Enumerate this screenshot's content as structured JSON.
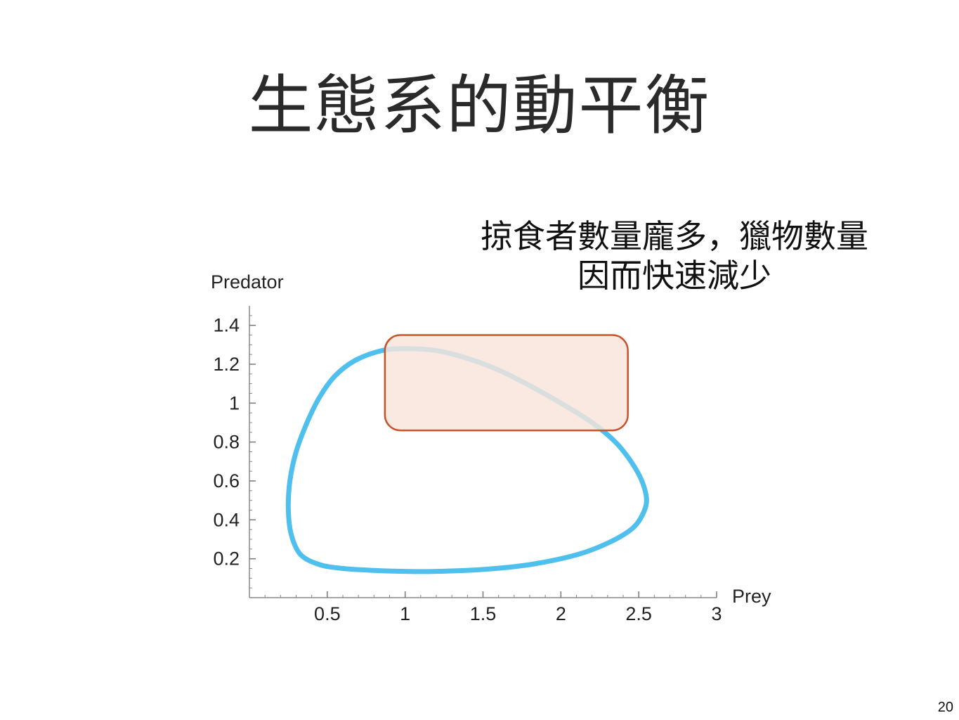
{
  "slide": {
    "title": "生態系的動平衡",
    "caption_line1": "掠食者數量龐多，獵物數量",
    "caption_line2": "因而快速減少",
    "page_number": "20"
  },
  "chart_data": {
    "type": "line",
    "xlabel": "Prey",
    "ylabel": "Predator",
    "xlim": [
      0,
      3
    ],
    "ylim": [
      0,
      1.5
    ],
    "x_ticks": [
      0.5,
      1,
      1.5,
      2,
      2.5,
      3
    ],
    "x_tick_labels": [
      "0.5",
      "1",
      "1.5",
      "2",
      "2.5",
      "3"
    ],
    "y_ticks": [
      0.2,
      0.4,
      0.6,
      0.8,
      1,
      1.2,
      1.4
    ],
    "y_tick_labels": [
      "0.2",
      "0.4",
      "0.6",
      "0.8",
      "1",
      "1.2",
      "1.4"
    ],
    "grid": false,
    "series": [
      {
        "color": "#4fc0ee",
        "closed": true,
        "points": [
          [
            1.0,
            1.28
          ],
          [
            1.2,
            1.27
          ],
          [
            1.4,
            1.23
          ],
          [
            1.6,
            1.17
          ],
          [
            1.8,
            1.09
          ],
          [
            2.0,
            1.0
          ],
          [
            2.2,
            0.9
          ],
          [
            2.35,
            0.8
          ],
          [
            2.45,
            0.7
          ],
          [
            2.52,
            0.6
          ],
          [
            2.55,
            0.5
          ],
          [
            2.52,
            0.42
          ],
          [
            2.45,
            0.35
          ],
          [
            2.3,
            0.28
          ],
          [
            2.1,
            0.22
          ],
          [
            1.8,
            0.17
          ],
          [
            1.5,
            0.145
          ],
          [
            1.2,
            0.135
          ],
          [
            1.0,
            0.135
          ],
          [
            0.8,
            0.14
          ],
          [
            0.6,
            0.15
          ],
          [
            0.45,
            0.17
          ],
          [
            0.33,
            0.22
          ],
          [
            0.27,
            0.32
          ],
          [
            0.25,
            0.45
          ],
          [
            0.26,
            0.6
          ],
          [
            0.3,
            0.75
          ],
          [
            0.37,
            0.9
          ],
          [
            0.45,
            1.03
          ],
          [
            0.55,
            1.14
          ],
          [
            0.68,
            1.22
          ],
          [
            0.85,
            1.27
          ]
        ]
      }
    ],
    "highlight": {
      "x_range": [
        0.87,
        2.43
      ],
      "y_range": [
        0.86,
        1.35
      ],
      "fill": "#f8e4da",
      "stroke": "#c8532a"
    }
  }
}
